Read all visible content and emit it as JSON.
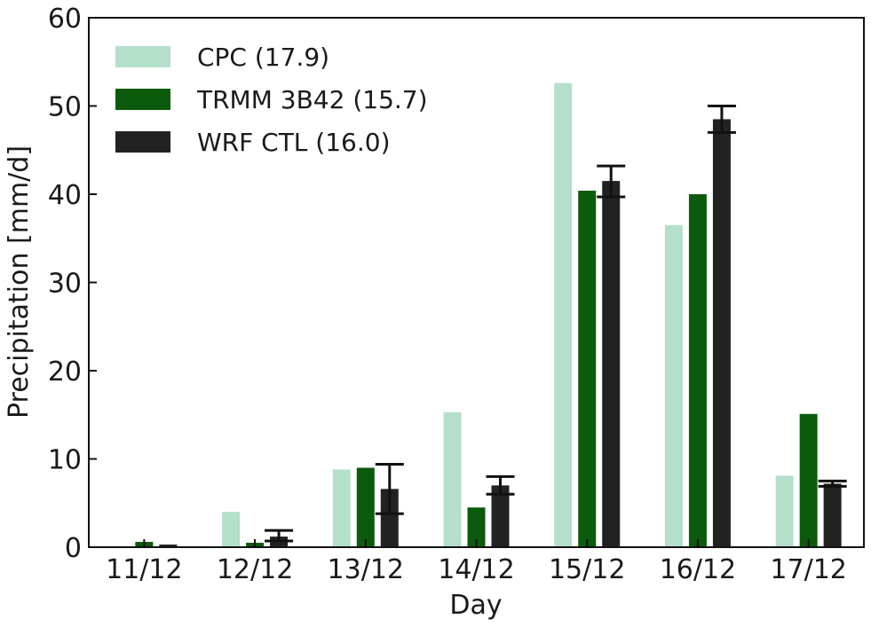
{
  "chart_data": {
    "type": "bar",
    "xlabel": "Day",
    "ylabel": "Precipitation [mm/d]",
    "ylim": [
      0,
      60
    ],
    "yticks": [
      0,
      10,
      20,
      30,
      40,
      50,
      60
    ],
    "categories": [
      "11/12",
      "12/12",
      "13/12",
      "14/12",
      "15/12",
      "16/12",
      "17/12"
    ],
    "legend_position": "top-left",
    "grid": false,
    "series": [
      {
        "name": "CPC (17.9)",
        "color": "#b4dfcb",
        "values": [
          0,
          4.0,
          8.8,
          15.3,
          52.6,
          36.5,
          8.1
        ]
      },
      {
        "name": "TRMM 3B42 (15.7)",
        "color": "#0c5a0c",
        "values": [
          0.6,
          0.5,
          9.0,
          4.5,
          40.4,
          40.0,
          15.1
        ]
      },
      {
        "name": "WRF CTL (16.0)",
        "color": "#222222",
        "values": [
          0.3,
          1.2,
          6.6,
          7.0,
          41.5,
          48.5,
          7.2
        ],
        "error_low": [
          0.3,
          0.7,
          3.8,
          6.0,
          39.7,
          47.0,
          6.9
        ],
        "error_high": [
          0.3,
          1.9,
          9.4,
          8.0,
          43.2,
          50.0,
          7.5
        ]
      }
    ]
  }
}
